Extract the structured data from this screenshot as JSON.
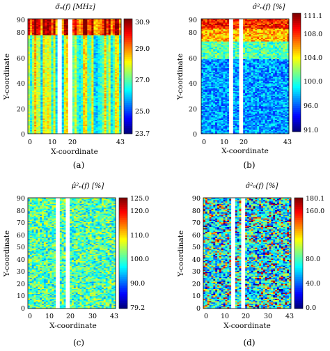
{
  "chart_data": [
    {
      "type": "heatmap",
      "title": "σ̃ₙ(f) [MHz]",
      "xlabel": "X-coordinate",
      "ylabel": "Y-coordinate",
      "caption": "(a)",
      "xticks": [
        "0",
        "10",
        "20",
        "43"
      ],
      "yticks": [
        "0",
        "20",
        "40",
        "60",
        "80",
        "90"
      ],
      "xlim": [
        0,
        43
      ],
      "ylim": [
        0,
        90
      ],
      "colorbar": {
        "range": [
          23.7,
          30.9
        ],
        "ticks": [
          "30.9",
          "29.0",
          "27.0",
          "25.0",
          "23.7"
        ]
      },
      "missing_columns": [
        14,
        15,
        19,
        20
      ],
      "pattern": "column-striped values, higher (red) near the top rows"
    },
    {
      "type": "heatmap",
      "title": "σ̂²ₙ(f) [%]",
      "xlabel": "X-coordinate",
      "ylabel": "Y-coordinate",
      "caption": "(b)",
      "xticks": [
        "0",
        "10",
        "20",
        "43"
      ],
      "yticks": [
        "0",
        "20",
        "40",
        "60",
        "80",
        "90"
      ],
      "xlim": [
        0,
        43
      ],
      "ylim": [
        0,
        90
      ],
      "colorbar": {
        "range": [
          91.0,
          111.1
        ],
        "ticks": [
          "111.1",
          "108.0",
          "104.0",
          "100.0",
          "96.0",
          "91.0"
        ]
      },
      "missing_columns": [
        14,
        15,
        19,
        20
      ],
      "pattern": "vertical gradient, high (red/orange) at top rows, low (blue) in middle-lower rows"
    },
    {
      "type": "heatmap",
      "title": "μ̂²ₙ(f) [%]",
      "xlabel": "X-coordinate",
      "ylabel": "Y-coordinate",
      "caption": "(c)",
      "xticks": [
        "0",
        "10",
        "20",
        "30",
        "43"
      ],
      "yticks": [
        "0",
        "10",
        "20",
        "30",
        "40",
        "50",
        "60",
        "70",
        "80",
        "90"
      ],
      "xlim": [
        0,
        43
      ],
      "ylim": [
        0,
        90
      ],
      "colorbar": {
        "range": [
          79.2,
          125.0
        ],
        "ticks": [
          "125.0",
          "120.0",
          "110.0",
          "100.0",
          "90.0",
          "79.2"
        ]
      },
      "missing_columns": [
        14,
        15,
        19,
        20
      ],
      "pattern": "mostly uniform around 100 with random noise"
    },
    {
      "type": "heatmap",
      "title": "σ̂²₀(f) [%]",
      "xlabel": "X-coordinate",
      "ylabel": "Y-coordinate",
      "caption": "(d)",
      "xticks": [
        "0",
        "10",
        "20",
        "30",
        "43"
      ],
      "yticks": [
        "0",
        "10",
        "20",
        "30",
        "40",
        "50",
        "60",
        "70",
        "80",
        "90"
      ],
      "xlim": [
        0,
        43
      ],
      "ylim": [
        0,
        90
      ],
      "colorbar": {
        "range": [
          0.0,
          180.1
        ],
        "ticks": [
          "180.1",
          "160.0",
          "80.0",
          "40.0",
          "0.0"
        ]
      },
      "missing_columns": [
        14,
        15,
        19,
        20
      ],
      "pattern": "high-contrast random cells across the full range"
    }
  ]
}
